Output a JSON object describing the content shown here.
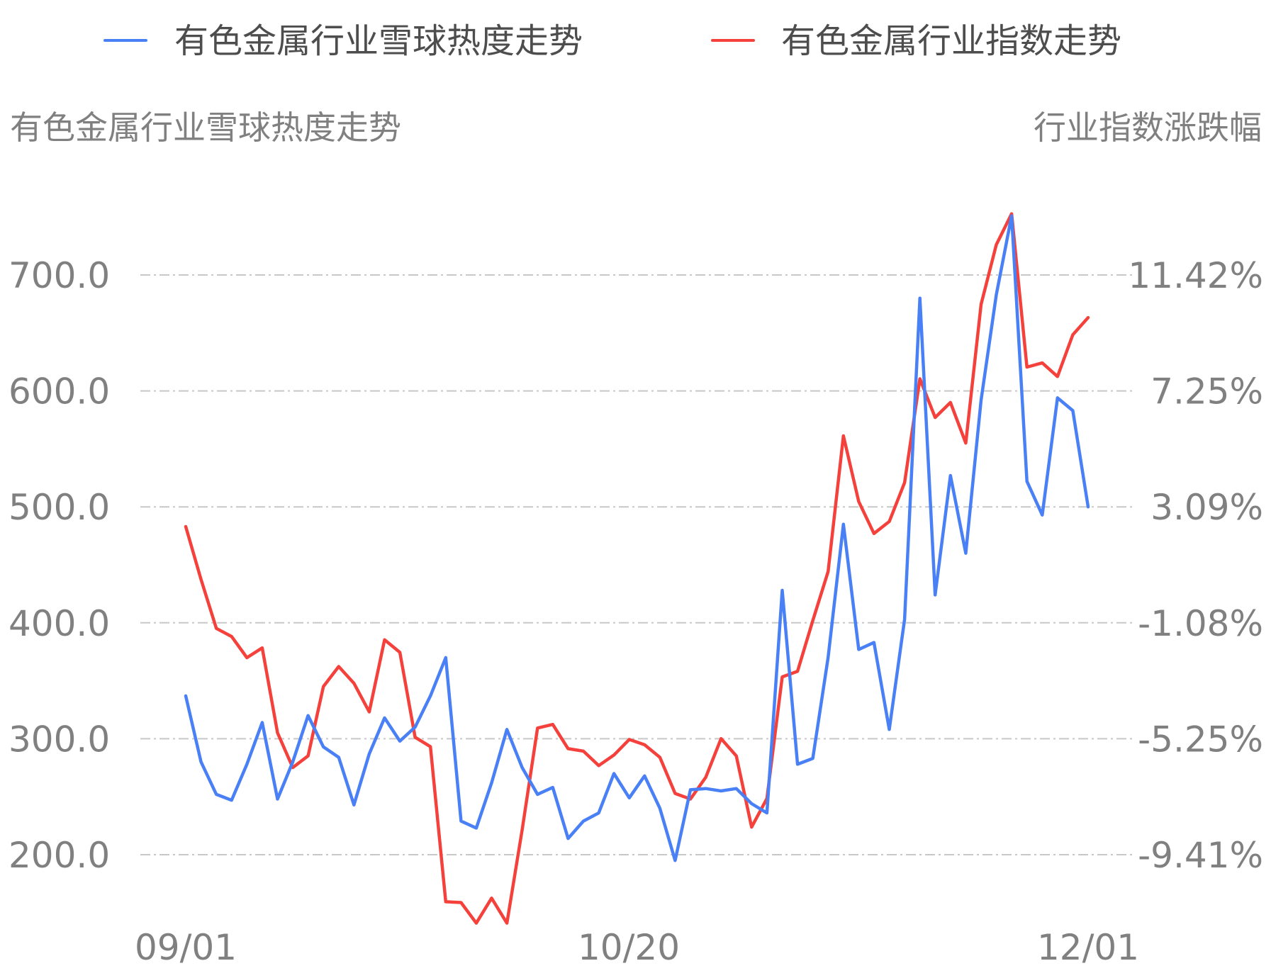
{
  "chart_data": {
    "type": "line",
    "legend": {
      "placement": "top",
      "items": [
        {
          "label": "有色金属行业雪球热度走势",
          "color": "#4a80f5"
        },
        {
          "label": "有色金属行业指数走势",
          "color": "#f5413c"
        }
      ]
    },
    "left_axis": {
      "title": "有色金属行业雪球热度走势",
      "ylim": [
        200,
        700
      ],
      "ticks": [
        "200.0",
        "300.0",
        "400.0",
        "500.0",
        "600.0",
        "700.0"
      ]
    },
    "right_axis": {
      "title": "行业指数涨跌幅",
      "unit": "%",
      "ylim": [
        -9.41,
        11.42
      ],
      "ticks": [
        "-9.41%",
        "-5.25%",
        "-1.08%",
        "3.09%",
        "7.25%",
        "11.42%"
      ]
    },
    "x_ticks": [
      "09/01",
      "10/20",
      "12/01"
    ],
    "grid": true,
    "series": [
      {
        "name": "有色金属行业雪球热度走势",
        "axis": "left",
        "color": "#4a80f5",
        "values": [
          337,
          280,
          252,
          247,
          278,
          314,
          248,
          280,
          320,
          293,
          284,
          243,
          287,
          318,
          298,
          310,
          337,
          370,
          229,
          223,
          262,
          308,
          275,
          252,
          258,
          214,
          229,
          236,
          270,
          249,
          268,
          240,
          195,
          256,
          257,
          255,
          257,
          244,
          236,
          428,
          278,
          283,
          370,
          485,
          377,
          383,
          308,
          403,
          680,
          424,
          527,
          460,
          592,
          683,
          751,
          522,
          493,
          594,
          583,
          500
        ]
      },
      {
        "name": "有色金属行业指数走势",
        "axis": "right",
        "color": "#f5413c",
        "values": [
          2.38,
          0.48,
          -1.28,
          -1.57,
          -2.33,
          -1.98,
          -5.03,
          -6.28,
          -5.86,
          -3.37,
          -2.65,
          -3.25,
          -4.28,
          -1.69,
          -2.14,
          -5.19,
          -5.53,
          -11.1,
          -11.13,
          -11.87,
          -10.97,
          -11.87,
          -8.5,
          -4.86,
          -4.73,
          -5.6,
          -5.69,
          -6.21,
          -5.83,
          -5.27,
          -5.46,
          -5.91,
          -7.21,
          -7.41,
          -6.63,
          -5.24,
          -5.86,
          -8.42,
          -7.39,
          -3.02,
          -2.82,
          -1.0,
          0.76,
          5.64,
          3.28,
          2.13,
          2.56,
          3.96,
          7.69,
          6.3,
          6.84,
          5.38,
          10.36,
          12.51,
          13.62,
          8.11,
          8.26,
          7.77,
          9.27,
          9.89
        ]
      }
    ]
  }
}
